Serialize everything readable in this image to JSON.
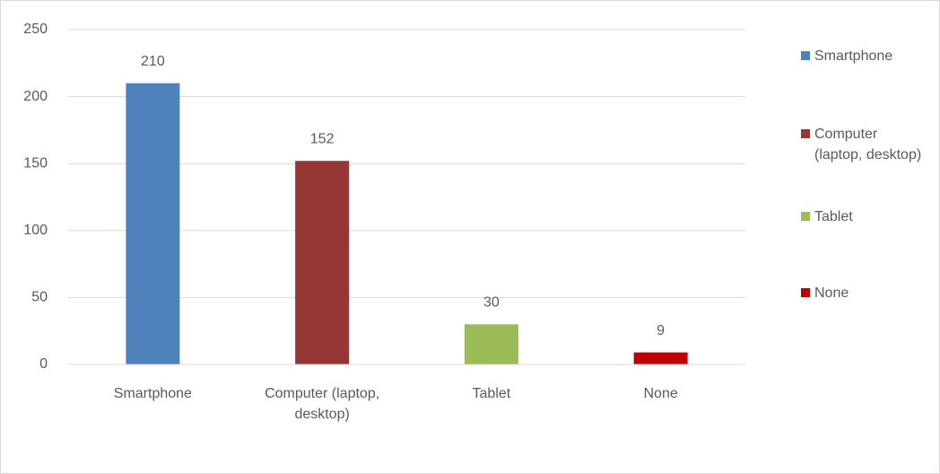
{
  "chart_data": {
    "type": "bar",
    "categories": [
      "Smartphone",
      "Computer (laptop, desktop)",
      "Tablet",
      "None"
    ],
    "values": [
      210,
      152,
      30,
      9
    ],
    "colors": [
      "#4f81bd",
      "#953735",
      "#9bbb59",
      "#c00000"
    ],
    "ylim": [
      0,
      250
    ],
    "yticks": [
      0,
      50,
      100,
      150,
      200,
      250
    ],
    "grid": true,
    "legend": "right"
  }
}
